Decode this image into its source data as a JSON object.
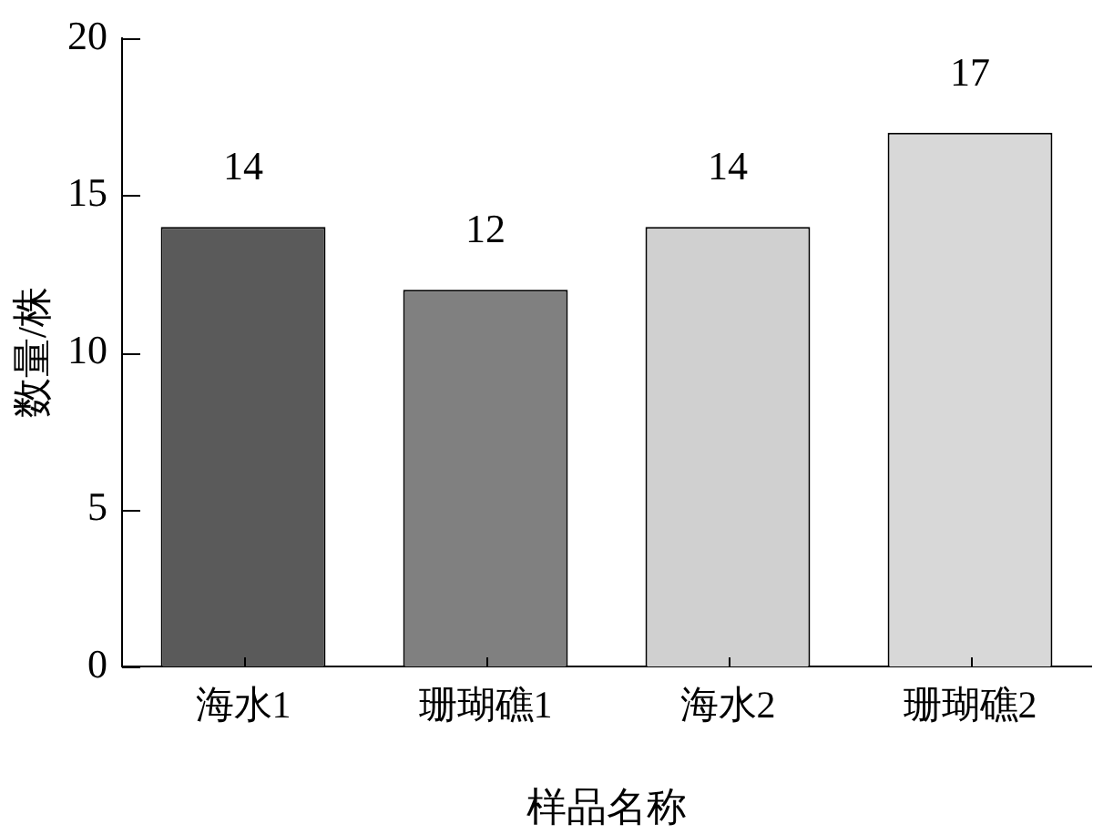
{
  "chart_data": {
    "type": "bar",
    "xlabel": "样品名称",
    "ylabel": "数量/株",
    "categories": [
      "海水1",
      "珊瑚礁1",
      "海水2",
      "珊瑚礁2"
    ],
    "values": [
      14,
      12,
      14,
      17
    ],
    "colors": [
      "#5a5a5a",
      "#808080",
      "#d0d0d0",
      "#d8d8d8"
    ],
    "ylim": [
      0,
      20
    ],
    "yticks": [
      0,
      5,
      10,
      15,
      20
    ],
    "grid": false,
    "legend": false,
    "data_labels": true
  }
}
